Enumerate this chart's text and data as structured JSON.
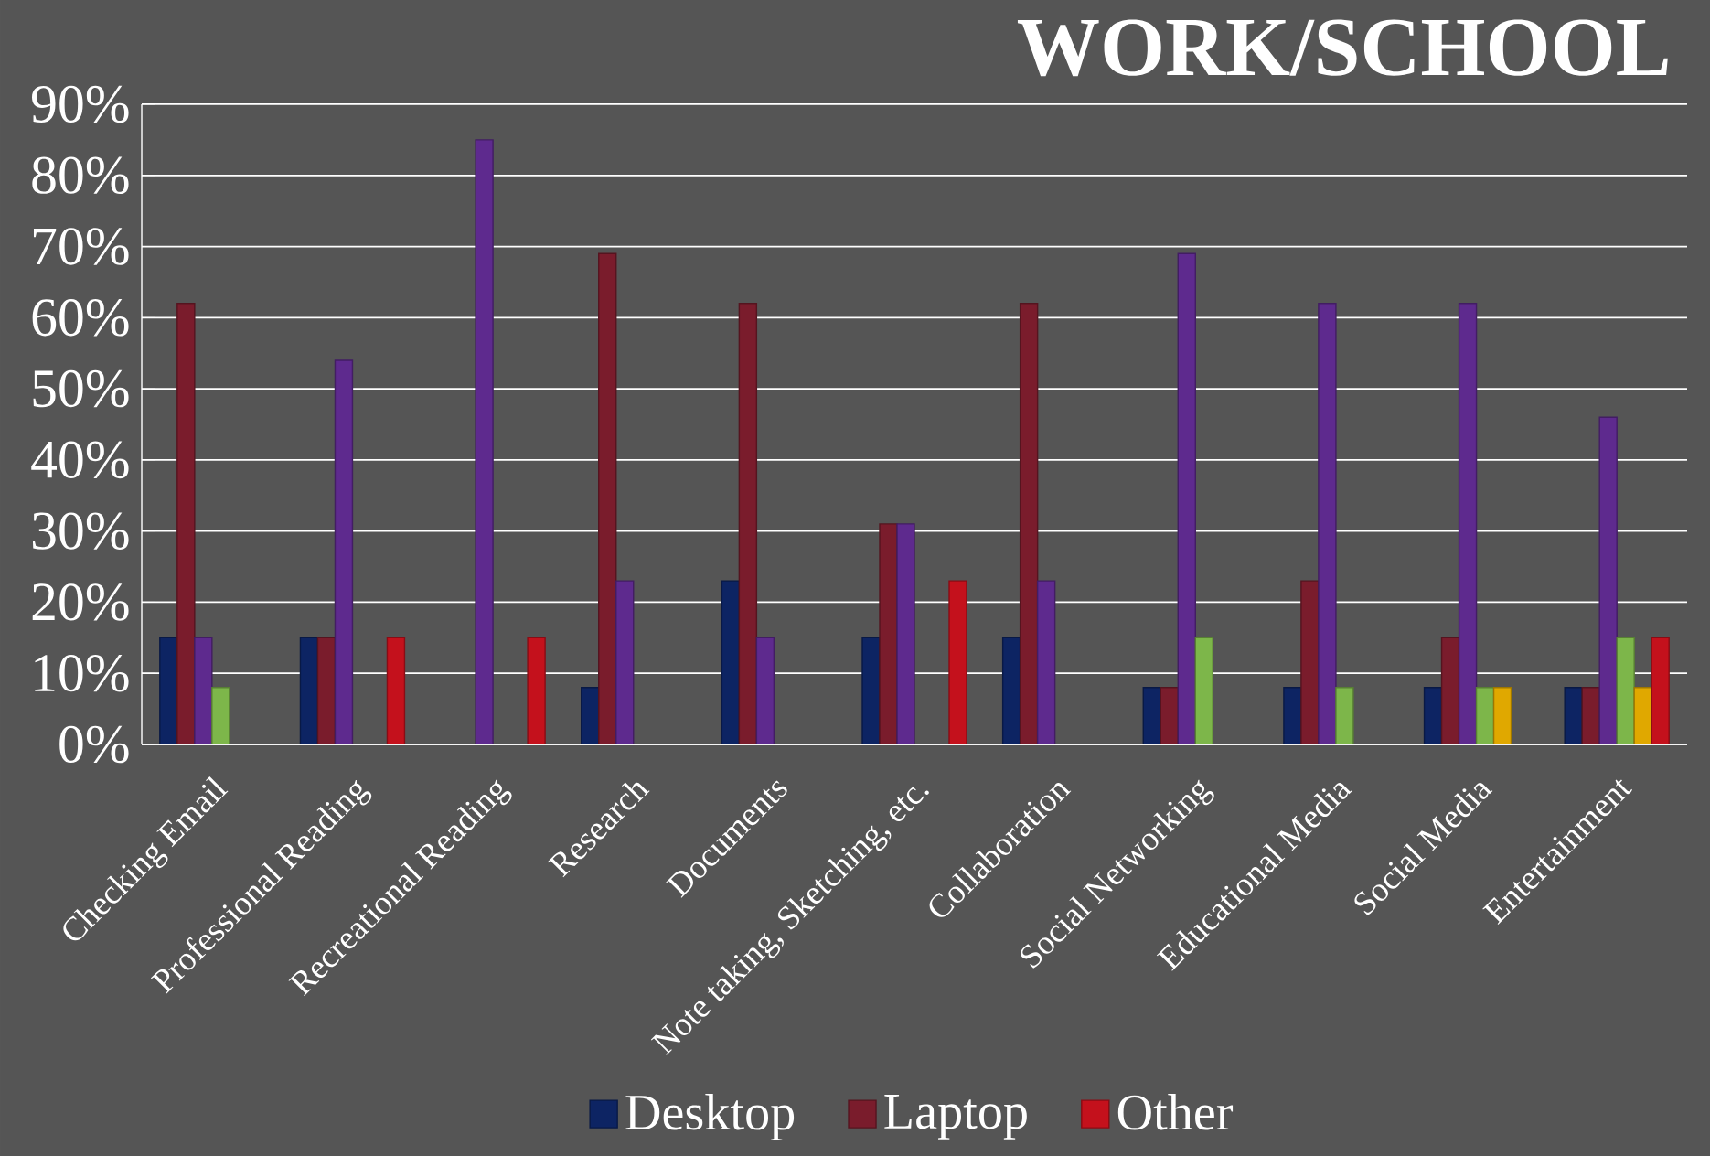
{
  "chart_data": {
    "type": "bar",
    "title": "WORK/SCHOOL",
    "categories": [
      "Checking Email",
      "Professional Reading",
      "Recreational Reading",
      "Research",
      "Documents",
      "Note taking, Sketching, etc.",
      "Collaboration",
      "Social Networking",
      "Educational Media",
      "Social Media",
      "Entertainment"
    ],
    "series": [
      {
        "name": "Desktop",
        "color": "#0d2463",
        "values": [
          15,
          15,
          null,
          8,
          23,
          15,
          15,
          8,
          8,
          8,
          8
        ]
      },
      {
        "name": "Laptop",
        "color": "#7a1c2c",
        "values": [
          62,
          15,
          null,
          69,
          62,
          31,
          62,
          8,
          23,
          15,
          8
        ]
      },
      {
        "color": "#5e2a8e",
        "values": [
          15,
          54,
          85,
          23,
          15,
          31,
          23,
          69,
          62,
          62,
          46
        ]
      },
      {
        "color": "#7db64a",
        "values": [
          8,
          null,
          null,
          null,
          null,
          null,
          null,
          15,
          8,
          8,
          15
        ]
      },
      {
        "color": "#e0a800",
        "values": [
          null,
          null,
          null,
          null,
          null,
          null,
          null,
          null,
          null,
          8,
          8
        ]
      },
      {
        "name": "Other",
        "color": "#c4111c",
        "values": [
          null,
          15,
          15,
          null,
          null,
          23,
          null,
          null,
          null,
          null,
          15
        ]
      }
    ],
    "ylim": [
      0,
      90
    ],
    "yticks": [
      {
        "value": 0,
        "label": "0%"
      },
      {
        "value": 10,
        "label": "10%"
      },
      {
        "value": 20,
        "label": "20%"
      },
      {
        "value": 30,
        "label": "30%"
      },
      {
        "value": 40,
        "label": "40%"
      },
      {
        "value": 50,
        "label": "50%"
      },
      {
        "value": 60,
        "label": "60%"
      },
      {
        "value": 70,
        "label": "70%"
      },
      {
        "value": 80,
        "label": "80%"
      },
      {
        "value": 90,
        "label": "90%"
      }
    ],
    "grid": "y",
    "legend": "bottom"
  }
}
